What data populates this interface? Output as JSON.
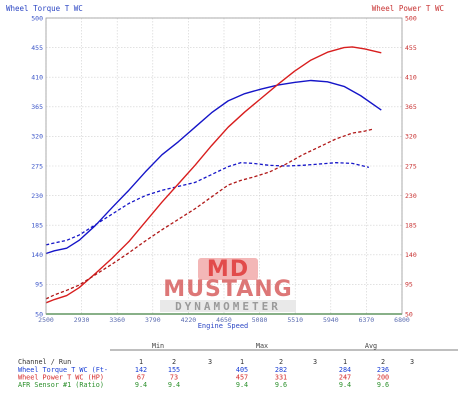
{
  "chart_data": {
    "type": "line",
    "left_axis_title": "Wheel Torque T WC",
    "right_axis_title": "Wheel Power T WC",
    "x_axis_title": "Engine Speed",
    "xlim": [
      2500,
      6800
    ],
    "ylim": [
      50,
      500
    ],
    "x_ticks": [
      "2500",
      "2930",
      "3360",
      "3790",
      "4220",
      "4650",
      "5080",
      "5510",
      "5940",
      "6370",
      "6800"
    ],
    "y_ticks": [
      "50",
      "95",
      "140",
      "185",
      "230",
      "275",
      "320",
      "365",
      "410",
      "455",
      "500"
    ],
    "grid": true,
    "series": [
      {
        "name": "Wheel Torque T WC (Ft-",
        "run": "1",
        "color": "#1515c8",
        "dash": false,
        "points": [
          [
            2500,
            142
          ],
          [
            2600,
            146
          ],
          [
            2750,
            150
          ],
          [
            2900,
            162
          ],
          [
            3100,
            185
          ],
          [
            3300,
            212
          ],
          [
            3500,
            238
          ],
          [
            3700,
            266
          ],
          [
            3900,
            292
          ],
          [
            4100,
            312
          ],
          [
            4300,
            334
          ],
          [
            4500,
            356
          ],
          [
            4700,
            374
          ],
          [
            4900,
            385
          ],
          [
            5100,
            392
          ],
          [
            5300,
            398
          ],
          [
            5500,
            402
          ],
          [
            5700,
            405
          ],
          [
            5900,
            403
          ],
          [
            6100,
            396
          ],
          [
            6300,
            382
          ],
          [
            6550,
            360
          ]
        ]
      },
      {
        "name": "Wheel Torque T WC (Ft-",
        "run": "2",
        "color": "#1515c8",
        "dash": true,
        "points": [
          [
            2500,
            155
          ],
          [
            2600,
            158
          ],
          [
            2750,
            162
          ],
          [
            2900,
            170
          ],
          [
            3100,
            186
          ],
          [
            3300,
            202
          ],
          [
            3500,
            218
          ],
          [
            3700,
            230
          ],
          [
            3900,
            238
          ],
          [
            4100,
            244
          ],
          [
            4300,
            250
          ],
          [
            4500,
            262
          ],
          [
            4700,
            274
          ],
          [
            4850,
            280
          ],
          [
            5000,
            279
          ],
          [
            5200,
            276
          ],
          [
            5400,
            275
          ],
          [
            5600,
            276
          ],
          [
            5800,
            278
          ],
          [
            6000,
            280
          ],
          [
            6200,
            279
          ],
          [
            6400,
            273
          ]
        ]
      },
      {
        "name": "Wheel Power T WC (HP)",
        "run": "1",
        "color": "#d81e1e",
        "dash": false,
        "points": [
          [
            2500,
            67
          ],
          [
            2600,
            72
          ],
          [
            2750,
            78
          ],
          [
            2900,
            90
          ],
          [
            3100,
            112
          ],
          [
            3300,
            135
          ],
          [
            3500,
            160
          ],
          [
            3700,
            190
          ],
          [
            3900,
            220
          ],
          [
            4100,
            248
          ],
          [
            4300,
            276
          ],
          [
            4500,
            306
          ],
          [
            4700,
            334
          ],
          [
            4900,
            357
          ],
          [
            5100,
            378
          ],
          [
            5300,
            399
          ],
          [
            5500,
            419
          ],
          [
            5700,
            436
          ],
          [
            5900,
            448
          ],
          [
            6100,
            455
          ],
          [
            6200,
            456
          ],
          [
            6350,
            453
          ],
          [
            6550,
            447
          ]
        ]
      },
      {
        "name": "Wheel Power T WC (HP)",
        "run": "2",
        "color": "#b01818",
        "dash": true,
        "points": [
          [
            2500,
            73
          ],
          [
            2600,
            79
          ],
          [
            2750,
            86
          ],
          [
            2900,
            94
          ],
          [
            3100,
            110
          ],
          [
            3300,
            126
          ],
          [
            3500,
            143
          ],
          [
            3700,
            161
          ],
          [
            3900,
            178
          ],
          [
            4100,
            194
          ],
          [
            4300,
            210
          ],
          [
            4500,
            228
          ],
          [
            4700,
            246
          ],
          [
            4850,
            253
          ],
          [
            5000,
            258
          ],
          [
            5200,
            266
          ],
          [
            5400,
            278
          ],
          [
            5600,
            292
          ],
          [
            5800,
            304
          ],
          [
            6000,
            316
          ],
          [
            6200,
            325
          ],
          [
            6350,
            328
          ],
          [
            6450,
            331
          ]
        ]
      },
      {
        "name": "AFR Sensor #1 (Ratio)",
        "run": "1",
        "color": "#1f8f1f",
        "dash": false,
        "points": [
          [
            2500,
            50
          ],
          [
            6800,
            50
          ]
        ]
      }
    ]
  },
  "watermark": {
    "brand": "MUSTANG",
    "sub": "DYNAMOMETER",
    "letters": "MD"
  },
  "table": {
    "header_label": "Channel / Run",
    "groups": [
      "Min",
      "Max",
      "Avg"
    ],
    "run_headers": [
      "1",
      "2",
      "3",
      "1",
      "2",
      "3",
      "1",
      "2",
      "3"
    ],
    "rows": [
      {
        "label": "Wheel Torque T WC (Ft-",
        "color": "#1a3fd6",
        "values": [
          "142",
          "155",
          "",
          "405",
          "282",
          "",
          "284",
          "236",
          ""
        ]
      },
      {
        "label": "Wheel Power T WC (HP)",
        "color": "#d42a2a",
        "values": [
          "67",
          "73",
          "",
          "457",
          "331",
          "",
          "247",
          "200",
          ""
        ]
      },
      {
        "label": "AFR Sensor #1 (Ratio)",
        "color": "#2a8f2a",
        "values": [
          "9.4",
          "9.4",
          "",
          "9.4",
          "9.6",
          "",
          "9.4",
          "9.6",
          ""
        ]
      }
    ]
  }
}
